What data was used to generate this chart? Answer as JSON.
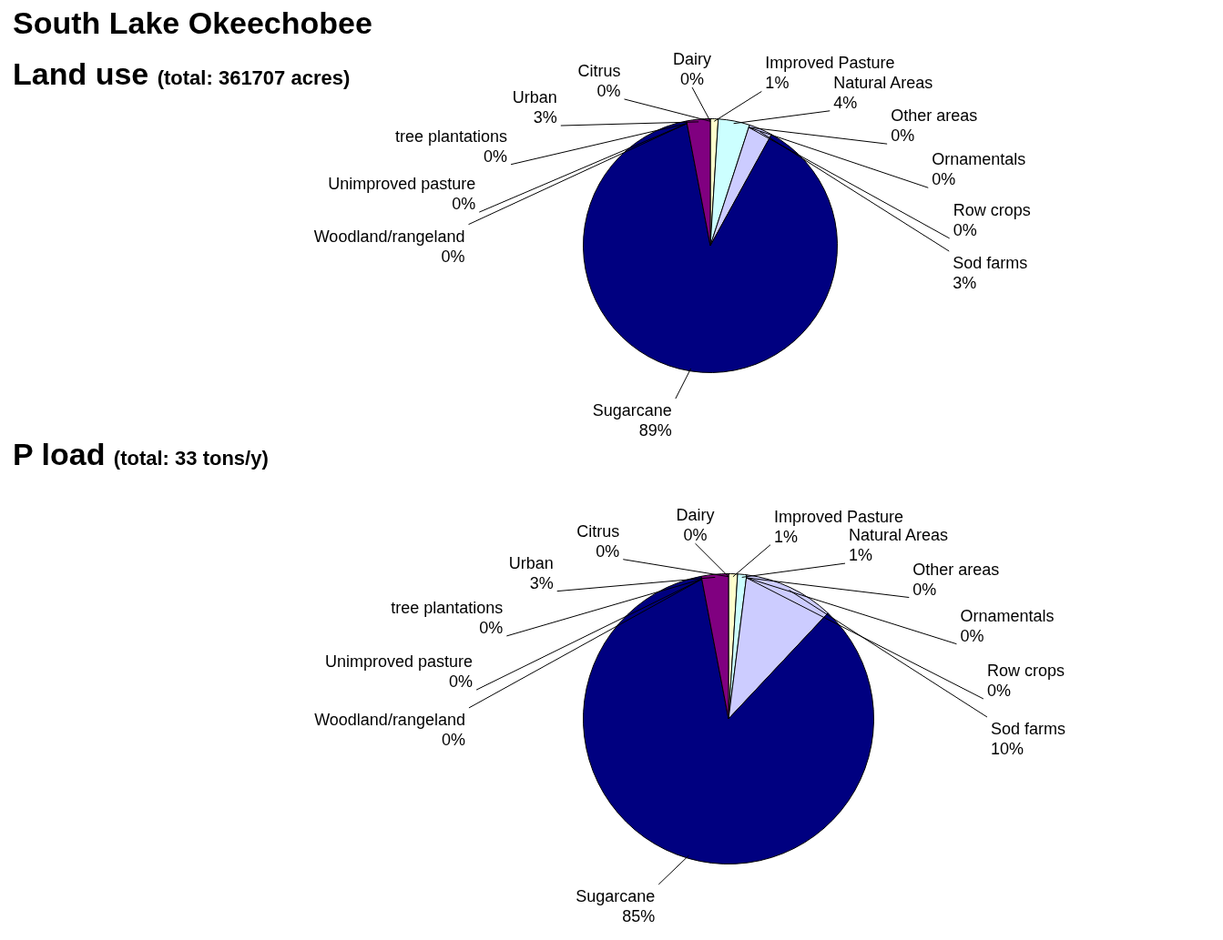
{
  "chart_data": [
    {
      "type": "pie",
      "title": "Land use",
      "subtitle": "(total: 361707 acres)",
      "annotations": [
        "South Lake Okeechobee"
      ],
      "categories": [
        "Citrus",
        "Dairy",
        "Improved Pasture",
        "Natural Areas",
        "Other areas",
        "Ornamentals",
        "Row crops",
        "Sod farms",
        "Sugarcane",
        "Woodland/rangeland",
        "Unimproved pasture",
        "tree plantations",
        "Urban"
      ],
      "values": [
        0,
        0,
        1,
        4,
        0,
        0,
        0,
        3,
        89,
        0,
        0,
        0,
        3
      ],
      "value_labels": [
        "0%",
        "0%",
        "1%",
        "4%",
        "0%",
        "0%",
        "0%",
        "3%",
        "89%",
        "0%",
        "0%",
        "0%",
        "3%"
      ],
      "colors": [
        "#9999ff",
        "#993366",
        "#ffffcc",
        "#ccffff",
        "#660066",
        "#ff8080",
        "#0066cc",
        "#ccccff",
        "#000080",
        "#ff00ff",
        "#ffff00",
        "#00ffff",
        "#800080"
      ]
    },
    {
      "type": "pie",
      "title": "P load",
      "subtitle": "(total: 33 tons/y)",
      "categories": [
        "Citrus",
        "Dairy",
        "Improved Pasture",
        "Natural Areas",
        "Other areas",
        "Ornamentals",
        "Row crops",
        "Sod farms",
        "Sugarcane",
        "Woodland/rangeland",
        "Unimproved pasture",
        "tree plantations",
        "Urban"
      ],
      "values": [
        0,
        0,
        1,
        1,
        0,
        0,
        0,
        10,
        85,
        0,
        0,
        0,
        3
      ],
      "value_labels": [
        "0%",
        "0%",
        "1%",
        "1%",
        "0%",
        "0%",
        "0%",
        "10%",
        "85%",
        "0%",
        "0%",
        "0%",
        "3%"
      ],
      "colors": [
        "#9999ff",
        "#993366",
        "#ffffcc",
        "#ccffff",
        "#660066",
        "#ff8080",
        "#0066cc",
        "#ccccff",
        "#000080",
        "#ff00ff",
        "#ffff00",
        "#00ffff",
        "#800080"
      ]
    }
  ]
}
